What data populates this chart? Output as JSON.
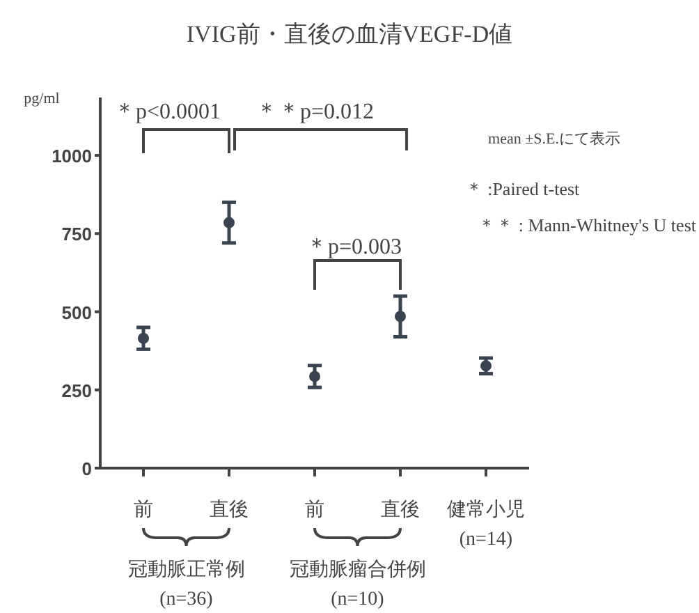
{
  "chart_data": {
    "type": "scatter",
    "title": "IVIG前・直後の血清VEGF-D値",
    "ylabel": "pg/ml",
    "categories": [
      "前",
      "直後",
      "前",
      "直後",
      "健常小児 (n=14)"
    ],
    "values": [
      415,
      785,
      293,
      485,
      327
    ],
    "errors": [
      35,
      65,
      35,
      65,
      25
    ],
    "color": "#3a4450",
    "marker": "circle",
    "ylim": [
      0,
      1185
    ],
    "yticks": [
      0,
      250,
      500,
      750,
      1000
    ],
    "annotations": [
      "＊p<0.0001",
      "＊＊p=0.012",
      "＊p=0.003",
      "mean ±S.E.にて表示",
      "＊ :Paired t-test",
      "＊＊ :  Mann-Whitney's U test",
      "冠動脈正常例 (n=36)",
      "冠動脈瘤合併例 (n=10)"
    ]
  }
}
